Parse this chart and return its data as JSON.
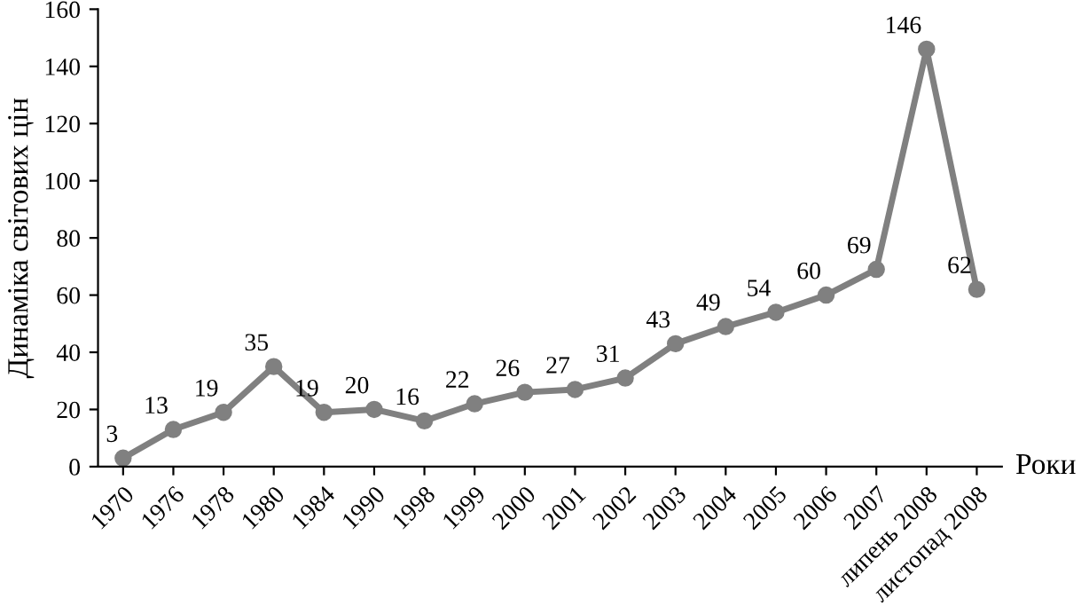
{
  "chart_data": {
    "type": "line",
    "xlabel": "Роки",
    "ylabel": "Динаміка світових цін",
    "categories": [
      "1970",
      "1976",
      "1978",
      "1980",
      "1984",
      "1990",
      "1998",
      "1999",
      "2000",
      "2001",
      "2002",
      "2003",
      "2004",
      "2005",
      "2006",
      "2007",
      "липень 2008",
      "листопад 2008"
    ],
    "series": [
      {
        "color": "#808080",
        "values": [
          3,
          13,
          19,
          35,
          19,
          20,
          16,
          22,
          26,
          27,
          31,
          43,
          49,
          54,
          60,
          69,
          146,
          62
        ]
      }
    ],
    "ylim": [
      0,
      160
    ],
    "yticks": [
      0,
      20,
      40,
      60,
      80,
      100,
      120,
      140,
      160
    ],
    "marker": "circle",
    "line_style": "solid",
    "grid": false,
    "legend": false,
    "data_labels": true
  }
}
